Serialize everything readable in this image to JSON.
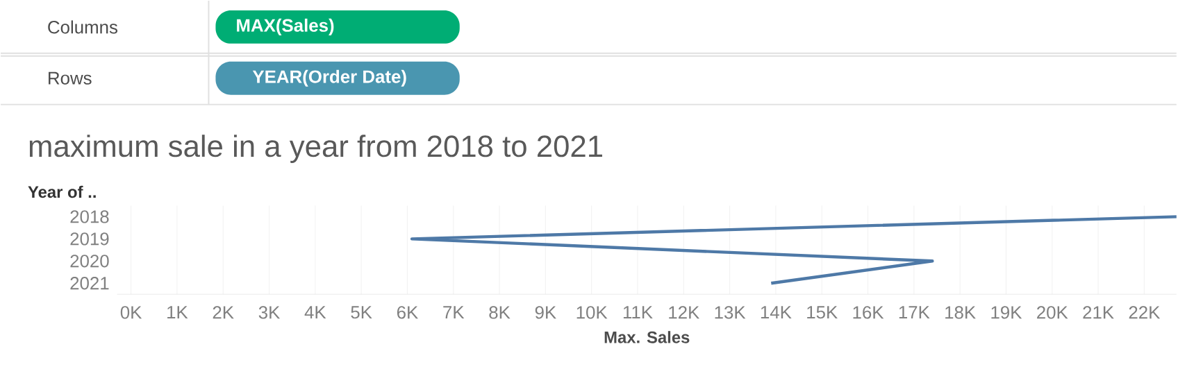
{
  "chart_data": {
    "type": "line",
    "orientation": "horizontal",
    "title": "maximum sale in a year from 2018 to 2021",
    "xlabel": "Max. Sales",
    "ylabel": "Year of ..",
    "categories": [
      "2018",
      "2019",
      "2020",
      "2021"
    ],
    "values": [
      22700,
      6100,
      17400,
      13900
    ],
    "color": "#4e79a7",
    "xlim": [
      -300,
      22700
    ],
    "xticks": [
      {
        "value": 0,
        "label": "0K"
      },
      {
        "value": 1000,
        "label": "1K"
      },
      {
        "value": 2000,
        "label": "2K"
      },
      {
        "value": 3000,
        "label": "3K"
      },
      {
        "value": 4000,
        "label": "4K"
      },
      {
        "value": 5000,
        "label": "5K"
      },
      {
        "value": 6000,
        "label": "6K"
      },
      {
        "value": 7000,
        "label": "7K"
      },
      {
        "value": 8000,
        "label": "8K"
      },
      {
        "value": 9000,
        "label": "9K"
      },
      {
        "value": 10000,
        "label": "10K"
      },
      {
        "value": 11000,
        "label": "11K"
      },
      {
        "value": 12000,
        "label": "12K"
      },
      {
        "value": 13000,
        "label": "13K"
      },
      {
        "value": 14000,
        "label": "14K"
      },
      {
        "value": 15000,
        "label": "15K"
      },
      {
        "value": 16000,
        "label": "16K"
      },
      {
        "value": 17000,
        "label": "17K"
      },
      {
        "value": 18000,
        "label": "18K"
      },
      {
        "value": 19000,
        "label": "19K"
      },
      {
        "value": 20000,
        "label": "20K"
      },
      {
        "value": 21000,
        "label": "21K"
      },
      {
        "value": 22000,
        "label": "22K"
      }
    ],
    "grid": "x",
    "marker": "none",
    "line_style": "solid",
    "annotations": [
      "Columns",
      "MAX(Sales)",
      "Rows",
      "YEAR(Order Date)"
    ]
  }
}
